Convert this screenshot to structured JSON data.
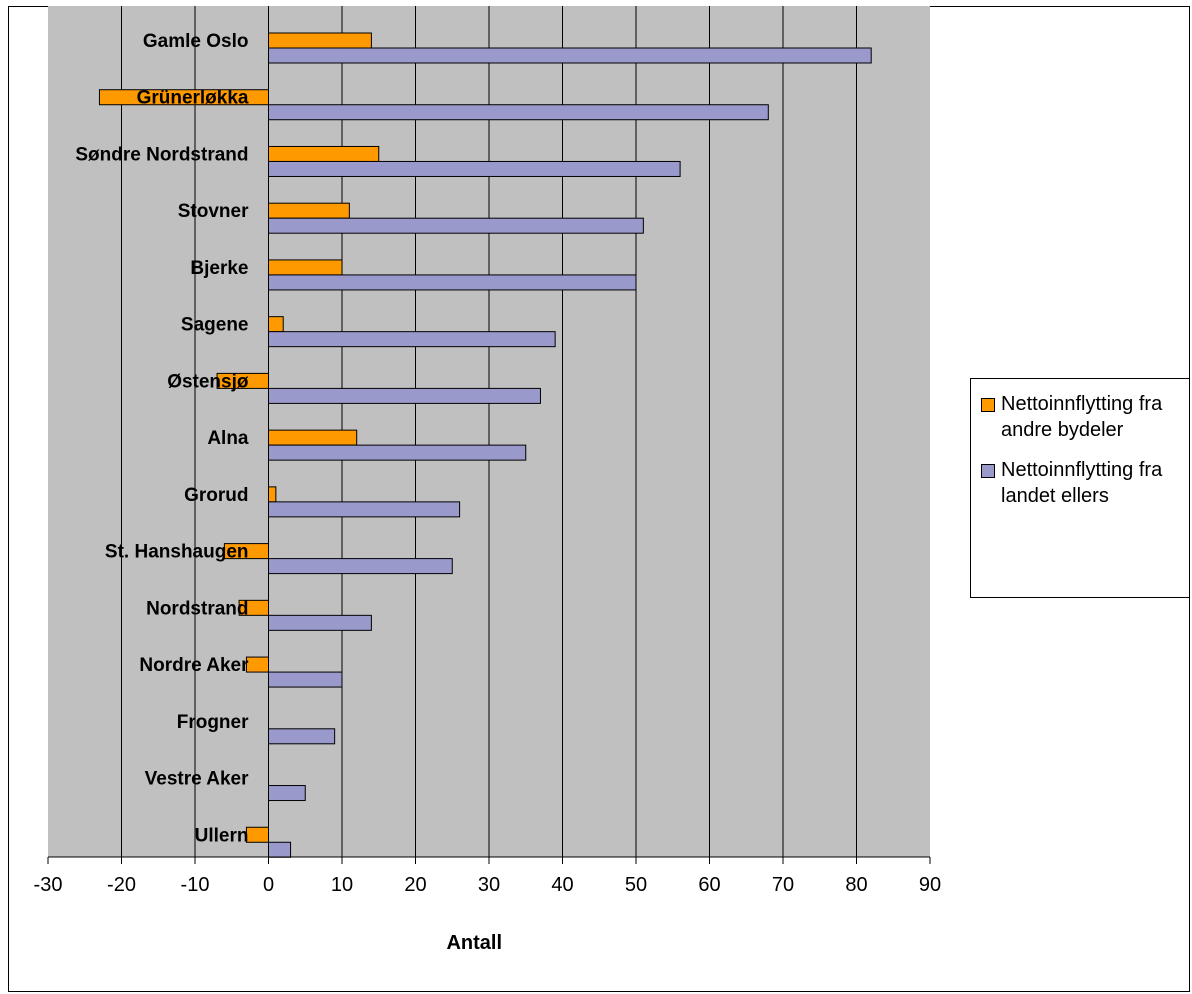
{
  "chart_data": {
    "type": "bar",
    "orientation": "horizontal",
    "categories": [
      "Gamle Oslo",
      "Grünerløkka",
      "Søndre Nordstrand",
      "Stovner",
      "Bjerke",
      "Sagene",
      "Østensjø",
      "Alna",
      "Grorud",
      "St. Hanshaugen",
      "Nordstrand",
      "Nordre Aker",
      "Frogner",
      "Vestre Aker",
      "Ullern"
    ],
    "series": [
      {
        "name": "Nettoinnflytting fra andre bydeler",
        "color": "#FF9900",
        "values": [
          14,
          -23,
          15,
          11,
          10,
          2,
          -7,
          12,
          1,
          -6,
          -4,
          -3,
          0,
          0,
          -3
        ]
      },
      {
        "name": "Nettoinnflytting fra landet ellers",
        "color": "#9999CC",
        "values": [
          82,
          68,
          56,
          51,
          50,
          39,
          37,
          35,
          26,
          25,
          14,
          10,
          9,
          5,
          3
        ]
      }
    ],
    "xlabel": "Antall",
    "xlim": [
      -30,
      90
    ],
    "xticks": [
      "-30",
      "-20",
      "-10",
      "0",
      "10",
      "20",
      "30",
      "40",
      "50",
      "60",
      "70",
      "80",
      "90"
    ],
    "plot_background": "#C0C0C0",
    "grid": true,
    "legend_position": "right"
  }
}
